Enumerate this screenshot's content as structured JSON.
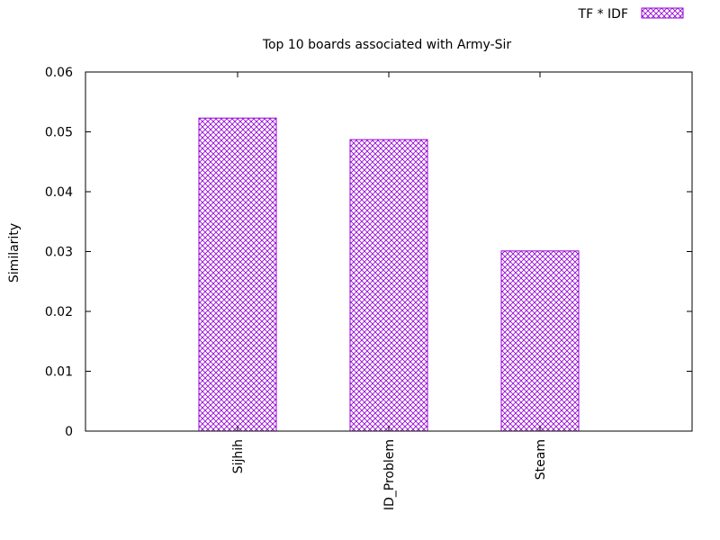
{
  "chart_data": {
    "type": "bar",
    "title": "Top 10 boards associated with Army-Sir",
    "xlabel": "",
    "ylabel": "Similarity",
    "categories": [
      "Sijhih",
      "ID_Problem",
      "Steam"
    ],
    "series": [
      {
        "name": "TF * IDF",
        "values": [
          0.0523,
          0.0487,
          0.0301
        ]
      }
    ],
    "ylim": [
      0,
      0.06
    ],
    "yticks": [
      "0",
      "0.01",
      "0.02",
      "0.03",
      "0.04",
      "0.05",
      "0.06"
    ],
    "ytick_values": [
      0,
      0.01,
      0.02,
      0.03,
      0.04,
      0.05,
      0.06
    ],
    "legend_position": "top-right",
    "grid": false,
    "bar_color": "#9400d3",
    "bar_fill": "crosshatch"
  }
}
